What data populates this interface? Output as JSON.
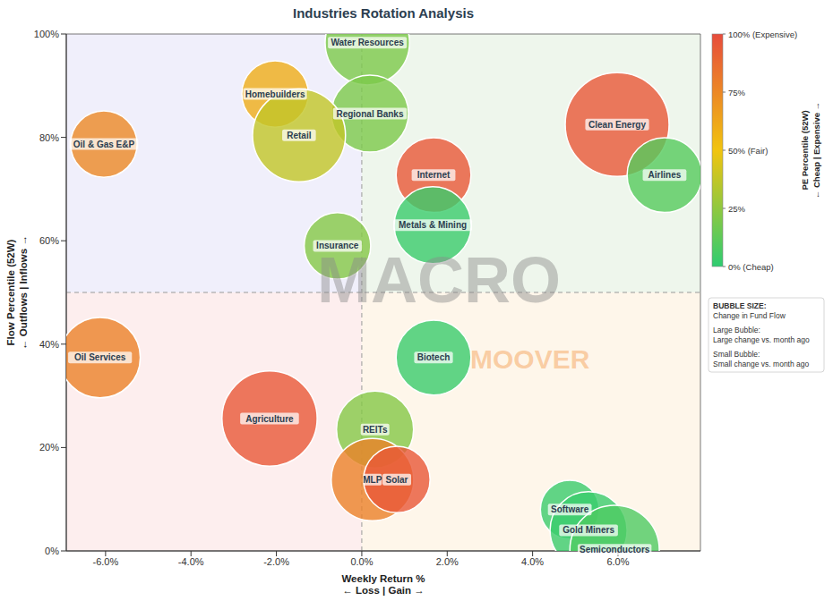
{
  "chart_data": {
    "type": "bubble",
    "title": "Industries Rotation Analysis",
    "x_label": "Weekly Return %\n← Loss | Gain →",
    "y_label": "Flow Percentile (52W)\n← Outflows | Inflows →",
    "labels": [
      "Water Resources",
      "Homebuilders",
      "Regional Banks",
      "Retail",
      "Oil & Gas E&P",
      "Clean Energy",
      "Airlines",
      "Internet",
      "Metals & Mining",
      "Insurance",
      "Oil Services",
      "Biotech",
      "Agriculture",
      "REITs",
      "MLP",
      "Solar",
      "Software",
      "Gold Miners",
      "Semiconductors"
    ],
    "x": [
      0.13,
      -2.03,
      0.19,
      -1.47,
      -6.04,
      5.98,
      7.09,
      1.68,
      1.66,
      -0.57,
      -6.13,
      1.68,
      -2.16,
      0.31,
      0.25,
      0.82,
      4.87,
      5.31,
      5.92
    ],
    "y": [
      98.3,
      88.4,
      84.6,
      80.4,
      78.7,
      82.5,
      72.7,
      72.7,
      63.0,
      59.0,
      37.4,
      37.4,
      25.6,
      23.5,
      13.8,
      13.8,
      8.0,
      4.0,
      0.2
    ],
    "pe_percentile": [
      20,
      60,
      20,
      38,
      75,
      95,
      10,
      95,
      3,
      22,
      78,
      3,
      95,
      22,
      78,
      95,
      3,
      3,
      8
    ],
    "bubble_size": [
      66,
      41,
      55,
      80,
      41,
      100,
      52,
      52,
      55,
      41,
      60,
      52,
      84,
      55,
      63,
      41,
      32,
      55,
      74
    ],
    "xlim": [
      -6.92,
      7.93
    ],
    "xticks": [
      {
        "value": -6,
        "label": "-6.0%"
      },
      {
        "value": -4,
        "label": "-4.0%"
      },
      {
        "value": -2,
        "label": "-2.0%"
      },
      {
        "value": 0,
        "label": "0.0%"
      },
      {
        "value": 2,
        "label": "2.0%"
      },
      {
        "value": 4,
        "label": "4.0%"
      },
      {
        "value": 6,
        "label": "6.0%"
      }
    ],
    "ylim": [
      0,
      100
    ],
    "yticks": [
      {
        "value": 0,
        "label": "0%"
      },
      {
        "value": 20,
        "label": "20%"
      },
      {
        "value": 40,
        "label": "40%"
      },
      {
        "value": 60,
        "label": "60%"
      },
      {
        "value": 80,
        "label": "80%"
      },
      {
        "value": 100,
        "label": "100%"
      }
    ],
    "x_divider": 0,
    "y_divider": 50,
    "grid": false,
    "colorbar": {
      "label": "PE Percentile (52W)\n← Cheap | Expensive →",
      "lim": [
        0,
        100
      ],
      "ticks": [
        {
          "value": 100,
          "label": "100% (Expensive)"
        },
        {
          "value": 75,
          "label": "75%"
        },
        {
          "value": 50,
          "label": "50% (Fair)"
        },
        {
          "value": 25,
          "label": "25%"
        },
        {
          "value": 0,
          "label": "0% (Cheap)"
        }
      ]
    },
    "size_legend": [
      [
        "BUBBLE SIZE:",
        "Change in Fund Flow"
      ],
      [
        "Large Bubble:",
        "Large change vs. month ago"
      ],
      [
        "Small Bubble:",
        "Small change vs. month ago"
      ]
    ],
    "watermark": [
      "MACRO",
      "MOOVER"
    ]
  }
}
